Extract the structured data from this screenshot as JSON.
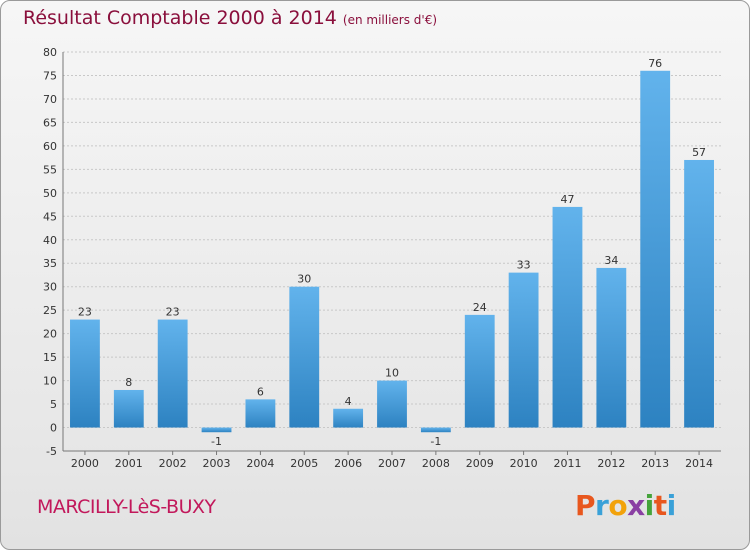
{
  "header": {
    "title": "Résultat Comptable 2000 à 2014",
    "subtitle": "(en milliers d'€)"
  },
  "footer": {
    "commune": "MARCILLY-LèS-BUXY",
    "logo_text": "Proxiti"
  },
  "colors": {
    "bar_light": "#62b3ec",
    "bar_dark": "#2d82c1",
    "title": "#8a0f3c",
    "commune": "#c2185b",
    "logo_letters": [
      "#e8571e",
      "#3aa1d8",
      "#f2a20b",
      "#8a3fa3",
      "#45a33a",
      "#e8571e",
      "#3aa1d8"
    ]
  },
  "chart_data": {
    "type": "bar",
    "title": "Résultat Comptable 2000 à 2014",
    "subtitle": "(en milliers d'€)",
    "categories": [
      "2000",
      "2001",
      "2002",
      "2003",
      "2004",
      "2005",
      "2006",
      "2007",
      "2008",
      "2009",
      "2010",
      "2011",
      "2012",
      "2013",
      "2014"
    ],
    "values": [
      23,
      8,
      23,
      -1,
      6,
      30,
      4,
      10,
      -1,
      24,
      33,
      47,
      34,
      76,
      57
    ],
    "data_labels": [
      "23",
      "8",
      "23",
      "-1",
      "6",
      "30",
      "4",
      "10",
      "-1",
      "24",
      "33",
      "47",
      "34",
      "76",
      "57"
    ],
    "ylim": [
      -5,
      80
    ],
    "yticks": [
      -5,
      0,
      5,
      10,
      15,
      20,
      25,
      30,
      35,
      40,
      45,
      50,
      55,
      60,
      65,
      70,
      75,
      80
    ],
    "grid": true,
    "xlabel": "",
    "ylabel": ""
  }
}
